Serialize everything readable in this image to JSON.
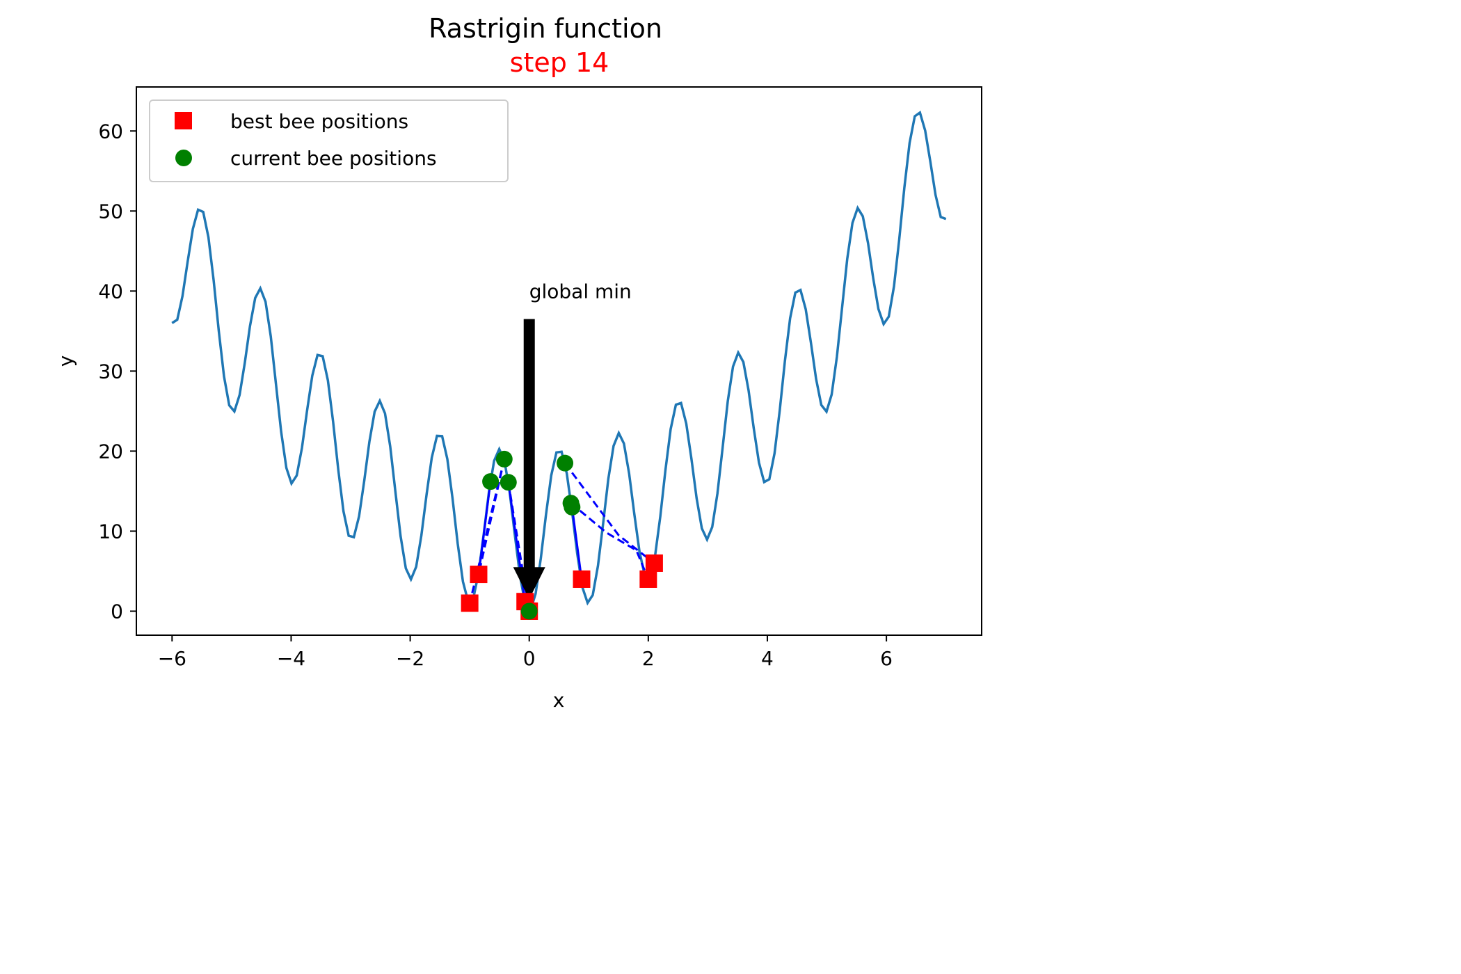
{
  "chart_data": {
    "type": "line",
    "title": "Rastrigin function",
    "subtitle": "step 14",
    "subtitle_color": "#ff0000",
    "xlabel": "x",
    "ylabel": "y",
    "xlim": [
      -6.6,
      7.6
    ],
    "ylim": [
      -3.0,
      65.5
    ],
    "xticks": [
      -6,
      -4,
      -2,
      0,
      2,
      4,
      6
    ],
    "yticks": [
      0,
      10,
      20,
      30,
      40,
      50,
      60
    ],
    "grid": false,
    "legend_position": "top-left",
    "curve_color": "#1f77b4",
    "curve_domain": [
      -6,
      7
    ],
    "curve_points": 150,
    "series": [
      {
        "name": "best bee positions",
        "marker": "square",
        "color": "#ff0000",
        "points": [
          {
            "x": -1.0,
            "y": 1.0
          },
          {
            "x": -0.85,
            "y": 4.6
          },
          {
            "x": -0.07,
            "y": 1.2
          },
          {
            "x": 0.0,
            "y": 0.0
          },
          {
            "x": 0.88,
            "y": 4.0
          },
          {
            "x": 2.0,
            "y": 4.0
          },
          {
            "x": 2.1,
            "y": 6.0
          }
        ]
      },
      {
        "name": "current bee positions",
        "marker": "circle",
        "color": "#008000",
        "points": [
          {
            "x": -0.65,
            "y": 16.2
          },
          {
            "x": -0.42,
            "y": 19.0
          },
          {
            "x": -0.35,
            "y": 16.1
          },
          {
            "x": 0.0,
            "y": 0.0
          },
          {
            "x": 0.6,
            "y": 18.5
          },
          {
            "x": 0.7,
            "y": 13.5
          },
          {
            "x": 0.72,
            "y": 13.0
          }
        ]
      }
    ],
    "trails": [
      {
        "points": [
          [
            -0.65,
            16.2
          ],
          [
            -0.85,
            4.6
          ]
        ],
        "dashed": false
      },
      {
        "points": [
          [
            -0.42,
            19.0
          ],
          [
            -0.85,
            4.6
          ]
        ],
        "dashed": true
      },
      {
        "points": [
          [
            -0.42,
            19.0
          ],
          [
            -1.0,
            1.0
          ]
        ],
        "dashed": true
      },
      {
        "points": [
          [
            -0.35,
            16.1
          ],
          [
            -0.07,
            1.2
          ]
        ],
        "dashed": false
      },
      {
        "points": [
          [
            -0.35,
            16.1
          ],
          [
            0.0,
            0.0
          ]
        ],
        "dashed": true
      },
      {
        "points": [
          [
            0.6,
            18.5
          ],
          [
            1.5,
            9.5
          ],
          [
            2.1,
            6.0
          ]
        ],
        "dashed": true
      },
      {
        "points": [
          [
            0.7,
            13.5
          ],
          [
            1.3,
            9.8
          ],
          [
            1.8,
            7.6
          ],
          [
            2.0,
            4.0
          ]
        ],
        "dashed": true
      },
      {
        "points": [
          [
            0.72,
            13.0
          ],
          [
            0.88,
            4.0
          ]
        ],
        "dashed": false
      }
    ],
    "annotation": {
      "text": "global min",
      "text_x": 0.0,
      "text_y": 40.0,
      "arrow_from_y": 36.5,
      "arrow_to_x": 0.0,
      "arrow_to_y": 1.5
    }
  }
}
